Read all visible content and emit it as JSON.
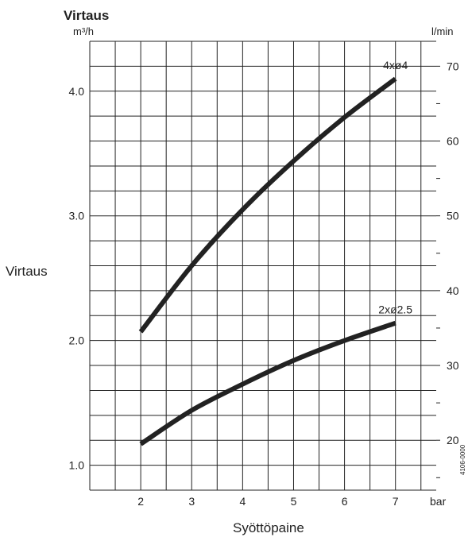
{
  "chart_data": {
    "type": "line",
    "title": "Virtaus",
    "xlabel": "Syöttöpaine",
    "ylabel": "Virtaus",
    "x_unit": "bar",
    "y_unit_left": "m³/h",
    "y_unit_right": "l/min",
    "xlim": [
      1,
      7.8
    ],
    "ylim": [
      0.8,
      4.4
    ],
    "y2lim": [
      13.33,
      73.33
    ],
    "x_ticks": [
      2,
      3,
      4,
      5,
      6,
      7
    ],
    "y_ticks_left": [
      "1.0",
      "2.0",
      "3.0",
      "4.0"
    ],
    "y_ticks_right": [
      "20",
      "30",
      "40",
      "50",
      "60",
      "70"
    ],
    "grid": true,
    "series": [
      {
        "name": "4xø4",
        "x": [
          2,
          3,
          4,
          5,
          6,
          7
        ],
        "y": [
          2.07,
          2.6,
          3.05,
          3.44,
          3.79,
          4.1
        ]
      },
      {
        "name": "2xø2.5",
        "x": [
          2,
          3,
          4,
          5,
          6,
          7
        ],
        "y": [
          1.17,
          1.44,
          1.65,
          1.84,
          2.0,
          2.14
        ]
      }
    ],
    "code_label": "4106-0000",
    "colors": {
      "line": "#222222",
      "grid": "#222222"
    }
  }
}
